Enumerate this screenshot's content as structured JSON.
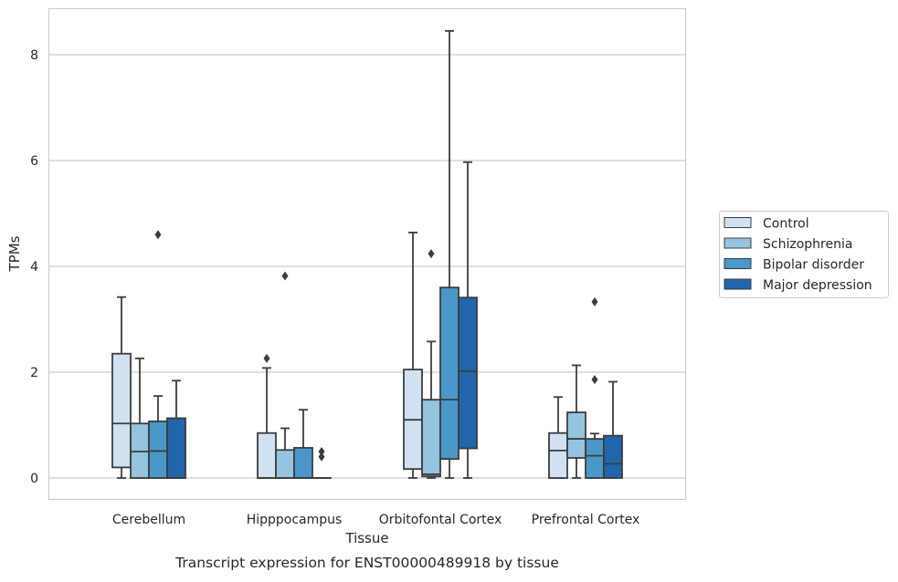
{
  "chart_data": {
    "type": "boxplot",
    "title": "",
    "caption": "Transcript expression for ENST00000489918 by tissue",
    "xlabel": "Tissue",
    "ylabel": "TPMs",
    "ylim": [
      -0.4,
      8.9
    ],
    "yticks": [
      0,
      2,
      4,
      6,
      8
    ],
    "grid": "horizontal",
    "legend_position": "right",
    "categories": [
      "Cerebellum",
      "Hipppocampus",
      "Orbitofontal Cortex",
      "Prefrontal Cortex"
    ],
    "series": [
      {
        "name": "Control",
        "color": "#d0e1f2",
        "boxes": [
          {
            "min": 0,
            "q1": 0.2,
            "median": 1.03,
            "q3": 2.35,
            "max": 3.42,
            "outliers": []
          },
          {
            "min": 0,
            "q1": 0,
            "median": 0,
            "q3": 0.85,
            "max": 2.08,
            "outliers": [
              2.26
            ]
          },
          {
            "min": 0,
            "q1": 0.17,
            "median": 1.1,
            "q3": 2.05,
            "max": 4.64,
            "outliers": []
          },
          {
            "min": 0,
            "q1": 0,
            "median": 0.52,
            "q3": 0.85,
            "max": 1.53,
            "outliers": []
          }
        ]
      },
      {
        "name": "Schizophrenia",
        "color": "#94c4df",
        "boxes": [
          {
            "min": 0,
            "q1": 0,
            "median": 0.5,
            "q3": 1.03,
            "max": 2.26,
            "outliers": []
          },
          {
            "min": 0,
            "q1": 0,
            "median": 0,
            "q3": 0.53,
            "max": 0.94,
            "outliers": [
              3.82
            ]
          },
          {
            "min": 0,
            "q1": 0.03,
            "median": 0.07,
            "q3": 1.48,
            "max": 2.58,
            "outliers": [
              4.24
            ]
          },
          {
            "min": 0,
            "q1": 0.38,
            "median": 0.74,
            "q3": 1.24,
            "max": 2.13,
            "outliers": []
          }
        ]
      },
      {
        "name": "Bipolar disorder",
        "color": "#4a98c9",
        "boxes": [
          {
            "min": 0,
            "q1": 0,
            "median": 0.51,
            "q3": 1.07,
            "max": 1.55,
            "outliers": [
              4.6
            ]
          },
          {
            "min": 0,
            "q1": 0,
            "median": 0,
            "q3": 0.57,
            "max": 1.29,
            "outliers": []
          },
          {
            "min": 0,
            "q1": 0.36,
            "median": 1.48,
            "q3": 3.6,
            "max": 8.45,
            "outliers": []
          },
          {
            "min": 0,
            "q1": 0,
            "median": 0.42,
            "q3": 0.74,
            "max": 0.84,
            "outliers": [
              1.86,
              3.33
            ]
          }
        ]
      },
      {
        "name": "Major depression",
        "color": "#2166ac",
        "boxes": [
          {
            "min": 0,
            "q1": 0,
            "median": 0,
            "q3": 1.13,
            "max": 1.84,
            "outliers": []
          },
          {
            "min": 0,
            "q1": 0,
            "median": 0,
            "q3": 0,
            "max": 0,
            "outliers": [
              0.4,
              0.5
            ]
          },
          {
            "min": 0,
            "q1": 0.56,
            "median": 2.02,
            "q3": 3.41,
            "max": 5.97,
            "outliers": []
          },
          {
            "min": 0,
            "q1": 0,
            "median": 0.27,
            "q3": 0.8,
            "max": 1.82,
            "outliers": []
          }
        ]
      }
    ]
  }
}
